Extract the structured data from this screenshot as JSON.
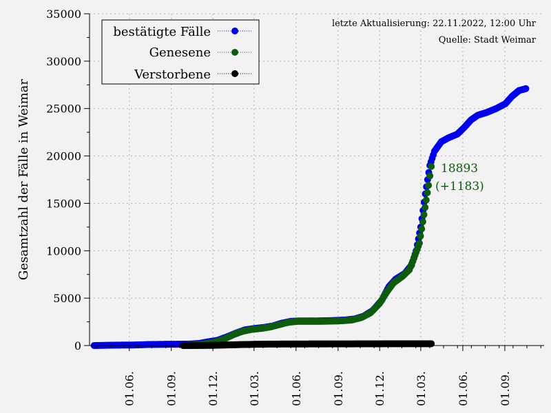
{
  "chart_data": {
    "type": "scatter",
    "ylabel": "Gesamtzahl der Fälle in Weimar",
    "xlabel": "",
    "ylim": [
      0,
      35000
    ],
    "yticks": [
      0,
      5000,
      10000,
      15000,
      20000,
      25000,
      30000,
      35000
    ],
    "xticks": [
      {
        "label": "01.06.",
        "day": 77
      },
      {
        "label": "01.09.",
        "day": 169
      },
      {
        "label": "01.12.",
        "day": 260
      },
      {
        "label": "01.03.",
        "day": 350
      },
      {
        "label": "01.06.",
        "day": 442
      },
      {
        "label": "01.09.",
        "day": 534
      },
      {
        "label": "01.12.",
        "day": 625
      },
      {
        "label": "01.03.",
        "day": 715
      },
      {
        "label": "01.06.",
        "day": 807
      },
      {
        "label": "01.09.",
        "day": 899
      }
    ],
    "xlim": [
      -10,
      985
    ],
    "grid": true,
    "legend_position": "top-left",
    "notes": [
      "letzte Aktualisierung: 22.11.2022, 12:00 Uhr",
      "Quelle: Stadt Weimar"
    ],
    "annotations": [
      "18893",
      "(+1183)"
    ],
    "series": [
      {
        "name": "bestätigte Fälle",
        "color": "#0000ee",
        "points": [
          [
            0,
            0
          ],
          [
            30,
            30
          ],
          [
            60,
            50
          ],
          [
            90,
            60
          ],
          [
            120,
            110
          ],
          [
            150,
            130
          ],
          [
            180,
            140
          ],
          [
            210,
            160
          ],
          [
            230,
            220
          ],
          [
            250,
            400
          ],
          [
            270,
            550
          ],
          [
            290,
            900
          ],
          [
            310,
            1300
          ],
          [
            330,
            1650
          ],
          [
            350,
            1800
          ],
          [
            370,
            1900
          ],
          [
            390,
            2050
          ],
          [
            410,
            2350
          ],
          [
            430,
            2550
          ],
          [
            450,
            2600
          ],
          [
            470,
            2600
          ],
          [
            490,
            2600
          ],
          [
            510,
            2620
          ],
          [
            530,
            2650
          ],
          [
            550,
            2700
          ],
          [
            570,
            2800
          ],
          [
            590,
            3100
          ],
          [
            610,
            3700
          ],
          [
            630,
            4800
          ],
          [
            645,
            6200
          ],
          [
            660,
            7000
          ],
          [
            680,
            7600
          ],
          [
            695,
            8500
          ],
          [
            705,
            10000
          ],
          [
            715,
            12500
          ],
          [
            725,
            16000
          ],
          [
            735,
            19000
          ],
          [
            745,
            20500
          ],
          [
            760,
            21500
          ],
          [
            775,
            21900
          ],
          [
            795,
            22300
          ],
          [
            810,
            23000
          ],
          [
            825,
            23800
          ],
          [
            840,
            24300
          ],
          [
            860,
            24600
          ],
          [
            880,
            25000
          ],
          [
            900,
            25500
          ],
          [
            915,
            26300
          ],
          [
            930,
            26900
          ],
          [
            945,
            27100
          ]
        ]
      },
      {
        "name": "Genesene",
        "color": "#0d5c0d",
        "points": [
          [
            195,
            0
          ],
          [
            220,
            60
          ],
          [
            245,
            200
          ],
          [
            265,
            380
          ],
          [
            285,
            700
          ],
          [
            305,
            1150
          ],
          [
            325,
            1500
          ],
          [
            345,
            1700
          ],
          [
            365,
            1800
          ],
          [
            385,
            1950
          ],
          [
            405,
            2200
          ],
          [
            425,
            2450
          ],
          [
            445,
            2550
          ],
          [
            465,
            2550
          ],
          [
            485,
            2550
          ],
          [
            505,
            2560
          ],
          [
            525,
            2580
          ],
          [
            545,
            2620
          ],
          [
            565,
            2700
          ],
          [
            585,
            2950
          ],
          [
            605,
            3450
          ],
          [
            625,
            4450
          ],
          [
            640,
            5600
          ],
          [
            655,
            6600
          ],
          [
            675,
            7300
          ],
          [
            690,
            8000
          ],
          [
            700,
            9200
          ],
          [
            712,
            10800
          ],
          [
            722,
            13800
          ],
          [
            732,
            16900
          ],
          [
            738,
            18893
          ]
        ]
      },
      {
        "name": "Verstorbene",
        "color": "#000000",
        "points": [
          [
            195,
            0
          ],
          [
            230,
            5
          ],
          [
            260,
            20
          ],
          [
            290,
            60
          ],
          [
            320,
            100
          ],
          [
            350,
            130
          ],
          [
            380,
            150
          ],
          [
            410,
            160
          ],
          [
            440,
            165
          ],
          [
            470,
            168
          ],
          [
            500,
            170
          ],
          [
            530,
            172
          ],
          [
            560,
            175
          ],
          [
            590,
            180
          ],
          [
            620,
            185
          ],
          [
            650,
            188
          ],
          [
            680,
            190
          ],
          [
            710,
            192
          ],
          [
            738,
            195
          ]
        ]
      }
    ]
  }
}
